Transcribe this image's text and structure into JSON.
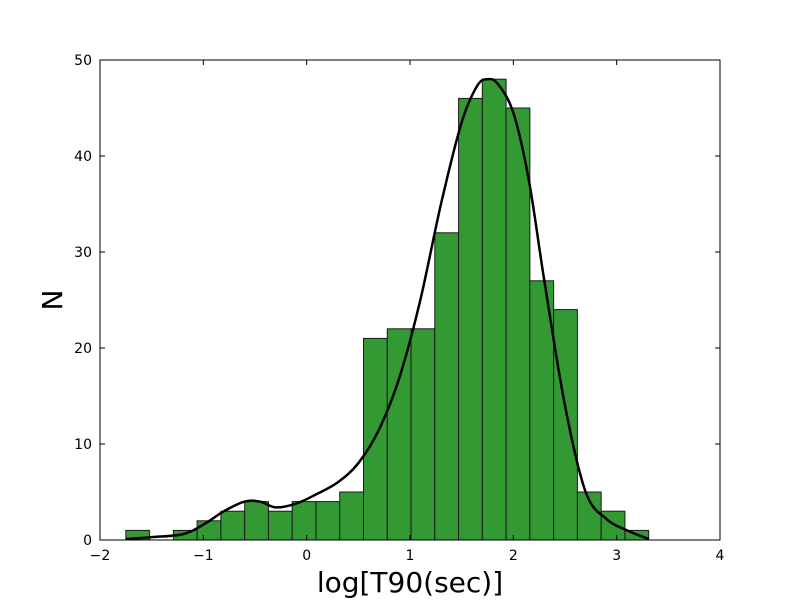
{
  "chart_data": {
    "type": "bar",
    "subtype": "histogram-with-density-curve",
    "xlabel": "log[T90(sec)]",
    "ylabel": "N",
    "xlim": [
      -2,
      4
    ],
    "ylim": [
      0,
      50
    ],
    "xticks": [
      "−2",
      "−1",
      "0",
      "1",
      "2",
      "3",
      "4"
    ],
    "yticks": [
      "0",
      "10",
      "20",
      "30",
      "40",
      "50"
    ],
    "bar_color": "#339933",
    "curve_color": "#000000",
    "bins": [
      {
        "x0": -1.75,
        "x1": -1.52,
        "count": 1
      },
      {
        "x0": -1.52,
        "x1": -1.29,
        "count": 0
      },
      {
        "x0": -1.29,
        "x1": -1.06,
        "count": 1
      },
      {
        "x0": -1.06,
        "x1": -0.83,
        "count": 2
      },
      {
        "x0": -0.83,
        "x1": -0.6,
        "count": 3
      },
      {
        "x0": -0.6,
        "x1": -0.37,
        "count": 4
      },
      {
        "x0": -0.37,
        "x1": -0.14,
        "count": 3
      },
      {
        "x0": -0.14,
        "x1": 0.09,
        "count": 4
      },
      {
        "x0": 0.09,
        "x1": 0.32,
        "count": 4
      },
      {
        "x0": 0.32,
        "x1": 0.55,
        "count": 5
      },
      {
        "x0": 0.55,
        "x1": 0.78,
        "count": 21
      },
      {
        "x0": 0.78,
        "x1": 1.01,
        "count": 22
      },
      {
        "x0": 1.01,
        "x1": 1.24,
        "count": 22
      },
      {
        "x0": 1.24,
        "x1": 1.47,
        "count": 32
      },
      {
        "x0": 1.47,
        "x1": 1.7,
        "count": 46
      },
      {
        "x0": 1.7,
        "x1": 1.93,
        "count": 48
      },
      {
        "x0": 1.93,
        "x1": 2.16,
        "count": 45
      },
      {
        "x0": 2.16,
        "x1": 2.39,
        "count": 27
      },
      {
        "x0": 2.39,
        "x1": 2.62,
        "count": 24
      },
      {
        "x0": 2.62,
        "x1": 2.85,
        "count": 5
      },
      {
        "x0": 2.85,
        "x1": 3.08,
        "count": 3
      },
      {
        "x0": 3.08,
        "x1": 3.31,
        "count": 1
      }
    ],
    "density_curve": {
      "x": [
        -1.75,
        -1.5,
        -1.2,
        -1.0,
        -0.8,
        -0.6,
        -0.45,
        -0.3,
        -0.1,
        0.1,
        0.3,
        0.5,
        0.7,
        0.9,
        1.1,
        1.3,
        1.5,
        1.65,
        1.75,
        1.85,
        2.0,
        2.15,
        2.3,
        2.5,
        2.7,
        2.9,
        3.1,
        3.31
      ],
      "y": [
        0.1,
        0.3,
        0.6,
        1.6,
        3.0,
        4.0,
        4.0,
        3.4,
        3.8,
        4.8,
        6.0,
        8.0,
        11.5,
        17.0,
        25.0,
        35.0,
        43.5,
        47.3,
        48.0,
        47.5,
        44.5,
        37.5,
        27.0,
        14.0,
        5.0,
        2.2,
        1.0,
        0.1
      ]
    }
  }
}
